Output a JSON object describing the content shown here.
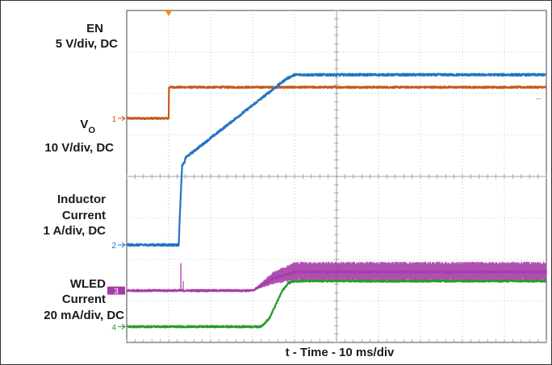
{
  "chart_data": {
    "type": "line",
    "title": "",
    "xlabel": "t - Time - 10 ms/div",
    "x_range_ms": [
      0,
      100
    ],
    "x_divisions": 10,
    "y_divisions": 8,
    "grid": true,
    "trigger_time_ms": 10,
    "channels": [
      {
        "id": 1,
        "marker": "1",
        "name_lines": [
          "EN"
        ],
        "scale": "5 V/div, DC",
        "color": "#c8581e",
        "level_marker": "←",
        "offset_div": 5.4,
        "x": [
          0,
          10,
          10.05,
          100
        ],
        "y": [
          0,
          0,
          0.75,
          0.75
        ],
        "noise_div": 0.02
      },
      {
        "id": 2,
        "marker": "2",
        "name_lines": [
          "V",
          "10 V/div, DC"
        ],
        "name_subscript": "O",
        "scale": "10 V/div, DC",
        "color": "#2273c4",
        "offset_div": 2.35,
        "x": [
          0,
          12.4,
          12.7,
          13.2,
          13.8,
          14,
          38,
          40,
          100
        ],
        "y": [
          0,
          0,
          0.8,
          1.9,
          2.0,
          2.1,
          4.0,
          4.1,
          4.1
        ],
        "noise_div": 0.025
      },
      {
        "id": 3,
        "marker": "3",
        "name_lines": [
          "Inductor",
          "Current",
          "1 A/div, DC"
        ],
        "scale": "1 A/div, DC",
        "color": "#a63ca8",
        "offset_div": 1.25,
        "x": [
          0,
          30,
          35,
          40,
          100
        ],
        "y": [
          0,
          0,
          0.3,
          0.45,
          0.45
        ],
        "spike_x": 12.9,
        "spike_height_div": 0.66,
        "ripple_div": 0.25,
        "noise_div": 0.02
      },
      {
        "id": 4,
        "marker": "4",
        "name_lines": [
          "WLED",
          "Current",
          "20 mA/div, DC"
        ],
        "scale": "20 mA/div, DC",
        "color": "#2a9a2a",
        "offset_div": 0.38,
        "x": [
          0,
          32,
          34,
          37,
          38.5,
          40,
          100
        ],
        "y": [
          0,
          0,
          0.2,
          0.85,
          1.05,
          1.1,
          1.1
        ],
        "noise_div": 0.02
      }
    ]
  }
}
